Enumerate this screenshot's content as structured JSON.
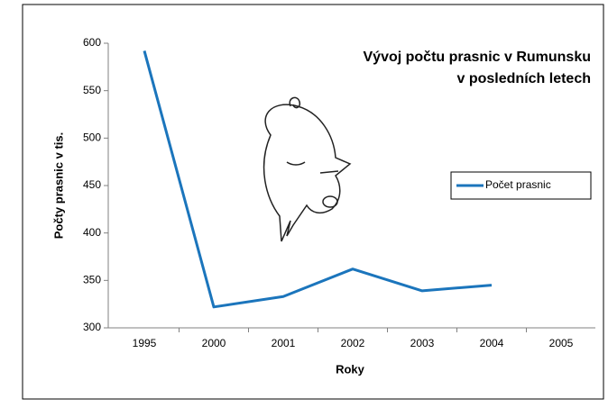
{
  "chart_data": {
    "type": "line",
    "title": [
      "Vývoj počtu prasnic v Rumunsku",
      "v posledních letech"
    ],
    "x_label": "Roky",
    "y_label": "Počty prasnic v tis.",
    "categories": [
      "1995",
      "2000",
      "2001",
      "2002",
      "2003",
      "2004",
      "2005"
    ],
    "series": [
      {
        "name": "Počet prasnic",
        "color": "#1b75bc",
        "values": [
          592,
          322,
          333,
          362,
          339,
          345,
          null
        ]
      }
    ],
    "ylim": [
      300,
      600
    ],
    "yticks": [
      300,
      350,
      400,
      450,
      500,
      550,
      600
    ],
    "grid": false,
    "legend": "right"
  }
}
